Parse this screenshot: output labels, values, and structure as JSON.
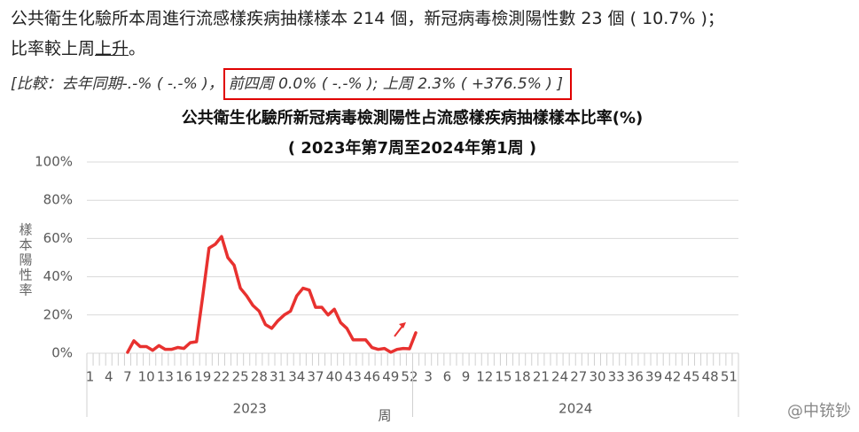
{
  "header": {
    "line1": "公共衛生化驗所本周進行流感樣疾病抽樣樣本 214 個，新冠病毒檢測陽性數 23 個 ( 10.7% )；",
    "line2_before": "比率較上周",
    "line2_trend": "上升",
    "line2_after": "。",
    "compare_year": "[比較：去年同期-.-% ( -.-% )，",
    "compare_recent": "前四周 0.0% ( -.-% ); 上周 2.3% ( +376.5% ) ]"
  },
  "watermark": "@中铳钞",
  "chart_data": {
    "type": "line",
    "title": "公共衛生化驗所新冠病毒檢測陽性占流感樣疾病抽樣樣本比率(%)",
    "subtitle": "( 2023年第7周至2024年第1周 )",
    "y_label": "樣本陽性率",
    "x_label": "周",
    "x_groups": [
      "2023",
      "2024"
    ],
    "categories": [
      "1",
      null,
      null,
      "4",
      null,
      null,
      "7",
      null,
      null,
      "10",
      null,
      null,
      "13",
      null,
      null,
      "16",
      null,
      null,
      "19",
      null,
      null,
      "22",
      null,
      null,
      "25",
      null,
      null,
      "28",
      null,
      null,
      "31",
      null,
      null,
      "34",
      null,
      null,
      "37",
      null,
      null,
      "40",
      null,
      null,
      "43",
      null,
      null,
      "46",
      null,
      null,
      "49",
      null,
      null,
      "52",
      null,
      null,
      "3",
      null,
      null,
      "6",
      null,
      null,
      "9",
      null,
      null,
      "12",
      null,
      null,
      "15",
      null,
      null,
      "18",
      null,
      null,
      "21",
      null,
      null,
      "24",
      null,
      null,
      "27",
      null,
      null,
      "30",
      null,
      null,
      "33",
      null,
      null,
      "36",
      null,
      null,
      "39",
      null,
      null,
      "42",
      null,
      null,
      "45",
      null,
      null,
      "48",
      null,
      null,
      "51",
      null
    ],
    "series": [
      {
        "color": "#e8312f",
        "values": [
          null,
          null,
          null,
          null,
          null,
          null,
          0.5,
          6.5,
          3.5,
          3.5,
          1.5,
          4,
          2,
          2,
          3,
          2.5,
          5.5,
          6,
          30,
          55,
          57,
          61,
          50,
          46,
          34,
          30,
          25,
          22,
          15,
          13,
          17,
          20,
          22,
          30,
          34,
          33,
          24,
          24,
          20,
          23,
          16,
          13,
          7,
          7,
          7,
          3,
          2,
          2.5,
          0.5,
          2,
          2.5,
          2.3,
          10.7,
          null,
          null,
          null,
          null,
          null,
          null,
          null,
          null,
          null,
          null,
          null,
          null,
          null,
          null,
          null,
          null,
          null,
          null,
          null,
          null,
          null,
          null,
          null,
          null,
          null,
          null,
          null,
          null,
          null,
          null,
          null,
          null,
          null,
          null,
          null,
          null,
          null,
          null,
          null,
          null,
          null,
          null,
          null,
          null,
          null,
          null,
          null,
          null,
          null,
          null,
          null
        ]
      }
    ],
    "ylim": [
      0,
      100
    ],
    "yticks": [
      {
        "value": 0,
        "label": "0%"
      },
      {
        "value": 20,
        "label": "20%"
      },
      {
        "value": 40,
        "label": "40%"
      },
      {
        "value": 60,
        "label": "60%"
      },
      {
        "value": 80,
        "label": "80%"
      },
      {
        "value": 100,
        "label": "100%"
      }
    ],
    "grid": true
  }
}
